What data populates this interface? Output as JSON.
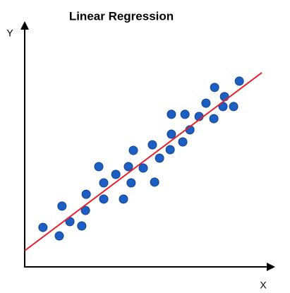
{
  "chart_data": {
    "type": "scatter",
    "title": "Linear Regression",
    "x_label": "X",
    "y_label": "Y",
    "xlim": [
      0,
      100
    ],
    "ylim": [
      0,
      100
    ],
    "point_color": "#1b5fc4",
    "x": [
      7.4,
      14.0,
      15.1,
      18.3,
      23.1,
      24.6,
      24.9,
      30.0,
      32.0,
      32.0,
      36.9,
      40.0,
      42.0,
      43.1,
      44.0,
      48.0,
      51.7,
      52.6,
      54.6,
      58.9,
      59.4,
      59.4,
      64.0,
      64.9,
      66.9,
      70.6,
      73.4,
      76.6,
      76.9,
      80.3,
      80.9,
      84.6,
      86.9
    ],
    "values": [
      16.3,
      12.8,
      25.1,
      18.7,
      16.9,
      23.3,
      30.0,
      41.4,
      28.0,
      34.7,
      38.2,
      28.0,
      41.4,
      34.7,
      48.1,
      40.8,
      50.4,
      35.0,
      44.9,
      48.4,
      54.8,
      63.0,
      51.6,
      63.0,
      56.6,
      62.1,
      67.6,
      61.2,
      74.1,
      66.2,
      70.3,
      66.2,
      76.7
    ],
    "fit_line": {
      "x": [
        0,
        96.0
      ],
      "values": [
        6.7,
        80.2
      ],
      "color": "#e8202a"
    }
  }
}
